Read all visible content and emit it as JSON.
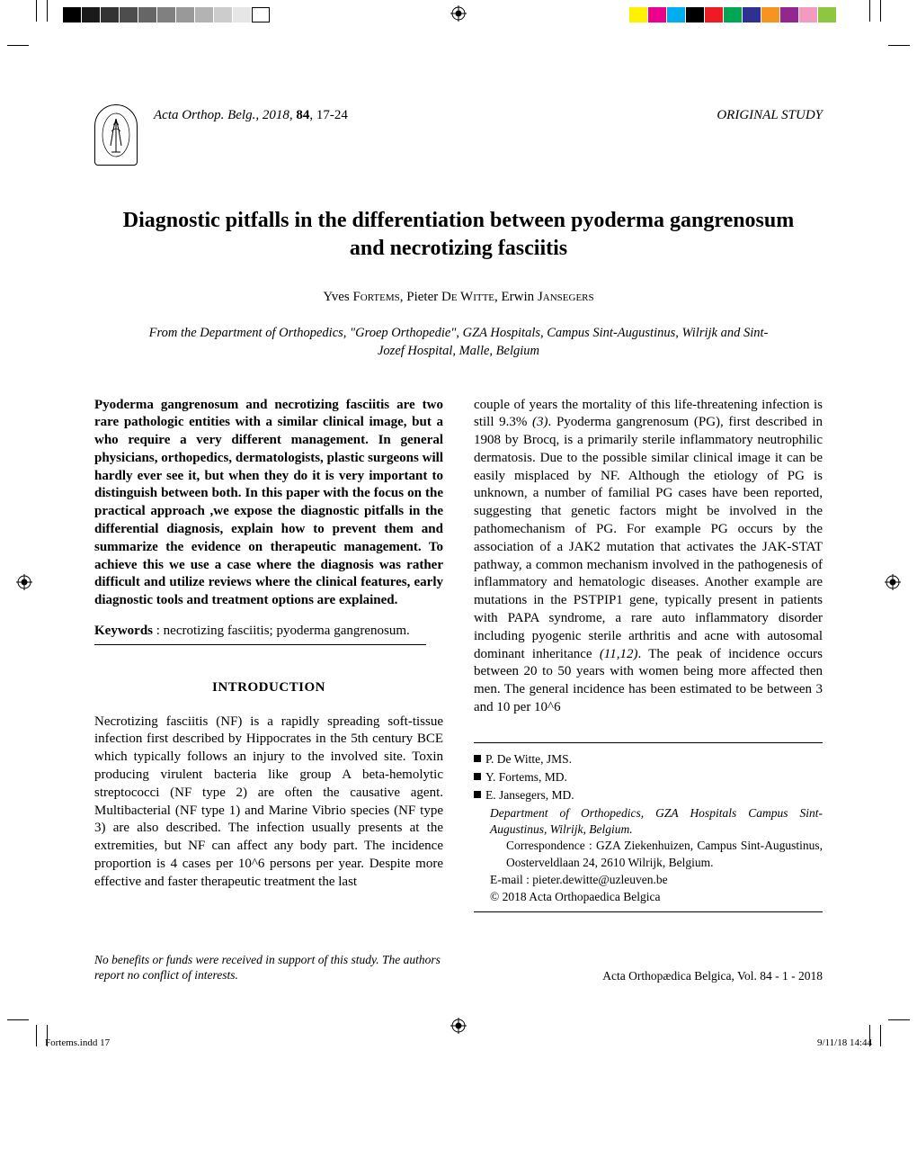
{
  "printer": {
    "gray_swatches": [
      "#000000",
      "#1a1a1a",
      "#333333",
      "#4d4d4d",
      "#666666",
      "#808080",
      "#999999",
      "#b3b3b3",
      "#cccccc",
      "#e6e6e6"
    ],
    "color_swatches": [
      "#fff200",
      "#ec008c",
      "#00aeef",
      "#000000",
      "#ed1c24",
      "#00a651",
      "#2e3192",
      "#f7941d",
      "#92278f",
      "#f49ac1",
      "#8dc63f"
    ]
  },
  "header": {
    "citation_prefix": "Acta Orthop. Belg.",
    "citation_year": ", 2018, ",
    "citation_vol": "84",
    "citation_pages": ", 17-24",
    "study_type": "ORIGINAL STUDY"
  },
  "title": "Diagnostic pitfalls in the differentiation between pyoderma gangrenosum and necrotizing fasciitis",
  "authors": {
    "a1_first": "Yves ",
    "a1_last": "Fortems",
    "a2_first": ", Pieter ",
    "a2_last": "De Witte",
    "a3_first": ", Erwin ",
    "a3_last": "Jansegers"
  },
  "affiliation": "From the Department of Orthopedics, \"Groep Orthopedie\", GZA Hospitals, Campus Sint-Augustinus, Wilrijk and Sint-Jozef Hospital, Malle, Belgium",
  "abstract": "Pyoderma gangrenosum and necrotizing fasciitis are two rare pathologic entities with a similar clinical  image, but a who require a very different management. In general physicians, orthopedics, dermatologists, plastic surgeons will hardly ever see it, but when they do it is very important to distinguish between both. In this paper with the focus on the practical approach ,we expose the diagnostic pitfalls in the differential diagnosis, explain how to prevent them and summarize the evidence on therapeutic management. To achieve this we use a case where the diagnosis was rather difficult and utilize reviews where the clinical features, early diagnostic tools and treatment options are explained.",
  "keywords_label": "Keywords",
  "keywords": " : necrotizing fasciitis; pyoderma gangrenosum.",
  "intro_heading": "INTRODUCTION",
  "intro_left": "Necrotizing fasciitis (NF) is a rapidly spreading soft-tissue infection first described by Hippocrates in the 5th century BCE which typically follows an injury to the involved site. Toxin producing virulent bacteria like group A beta-hemolytic streptococci (NF type 2) are often the causative agent. Multibacterial (NF type 1) and Marine Vibrio species (NF type 3) are also  described. The infection usually presents at the extremities, but NF can affect any body part. The incidence proportion is 4 cases per 10^6 persons per year. Despite more effective and faster therapeutic treatment the last",
  "intro_right_1": "couple of years the mortality of this life-threatening infection is still 9.3% ",
  "ref_3": "(3)",
  "intro_right_2": ". Pyoderma gangrenosum (PG), first described in 1908 by Brocq, is a primarily sterile inflammatory neutrophilic dermatosis. Due to the possible similar clinical image it can be easily misplaced by NF. Although the etiology of PG is unknown, a number of familial PG cases have been reported, suggesting that genetic factors might be involved in the pathomechanism of PG. For example PG occurs by the association of a JAK2 mutation that activates the JAK-STAT pathway, a common mechanism involved in the pathogenesis of inflammatory and hematologic diseases. Another example are mutations in the PSTPIP1 gene, typically present in patients with PAPA syndrome, a rare auto inflammatory disorder including pyogenic sterile arthritis and acne with autosomal dominant inheritance ",
  "ref_1112": "(11,12)",
  "intro_right_3": ". The peak of incidence occurs between 20 to 50 years with women being more affected then men.  The general incidence has been estimated to be between 3 and 10 per 10^6",
  "author_box": {
    "a1": "P. De Witte, JMS.",
    "a2": "Y. Fortems, MD.",
    "a3": "E. Jansegers, MD.",
    "dept": "Department of Orthopedics, GZA Hospitals Campus Sint-Augustinus, Wilrijk, Belgium.",
    "corr": "Correspondence : GZA Ziekenhuizen, Campus Sint-Augustinus, Oosterveldlaan 24, 2610 Wilrijk, Belgium.",
    "email": "E-mail : pieter.dewitte@uzleuven.be",
    "copyright": "© 2018 Acta Orthopaedica Belgica"
  },
  "footer": {
    "left": "No benefits or funds were received in support of this study. The authors report no conflict of interests.",
    "right": "Acta Orthopædica Belgica, Vol. 84 - 1 - 2018"
  },
  "pagefoot": {
    "left": "Fortems.indd   17",
    "right": "9/11/18   14:44"
  }
}
